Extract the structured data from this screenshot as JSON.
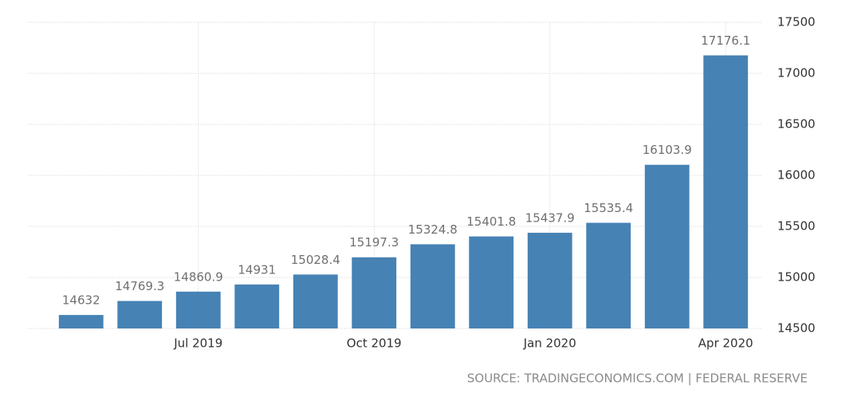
{
  "chart_data": {
    "type": "bar",
    "categories": [
      null,
      null,
      "Jul 2019",
      null,
      null,
      "Oct 2019",
      null,
      null,
      "Jan 2020",
      null,
      null,
      "Apr 2020"
    ],
    "values": [
      14632,
      14769.3,
      14860.9,
      14931,
      15028.4,
      15197.3,
      15324.8,
      15401.8,
      15437.9,
      15535.4,
      16103.9,
      17176.1
    ],
    "color": "#4682b4",
    "ylim": [
      14500,
      17500
    ],
    "yticks": [
      14500,
      15000,
      15500,
      16000,
      16500,
      17000,
      17500
    ],
    "grid": true,
    "y_axis_side": "right",
    "source": "SOURCE: TRADINGECONOMICS.COM | FEDERAL RESERVE"
  }
}
